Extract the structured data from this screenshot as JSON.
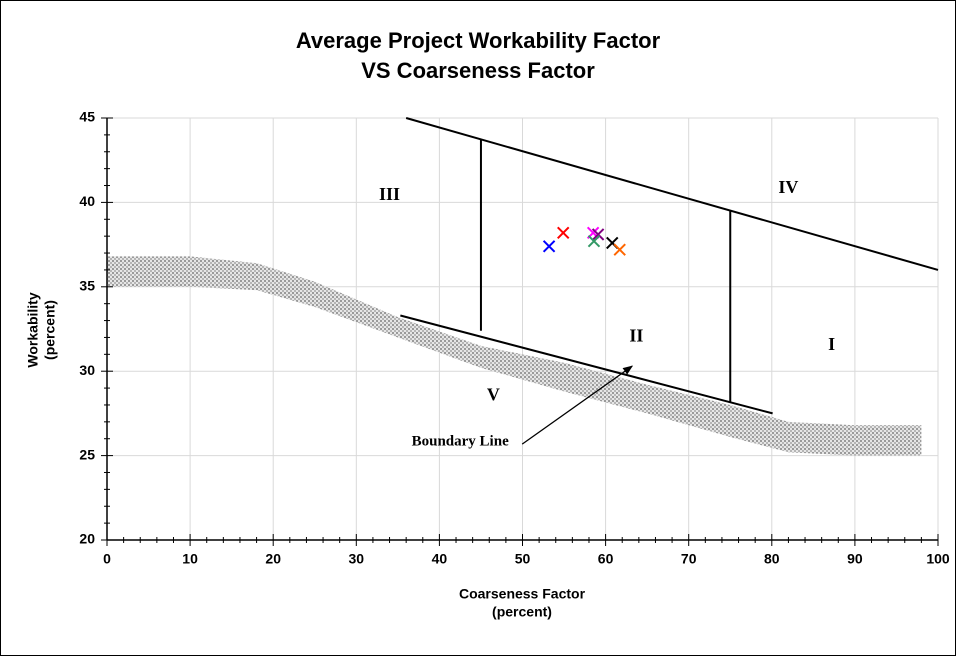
{
  "chart_data": {
    "type": "scatter",
    "title": [
      "Average Project Workability Factor",
      "VS Coarseness Factor"
    ],
    "x_label": [
      "Coarseness Factor",
      "(percent)"
    ],
    "y_label": [
      "Workability",
      "(percent)"
    ],
    "xlim": [
      0,
      100
    ],
    "ylim": [
      20,
      45
    ],
    "xticks": [
      0,
      10,
      20,
      30,
      40,
      50,
      60,
      70,
      80,
      90,
      100
    ],
    "yticks": [
      20,
      25,
      30,
      35,
      40,
      45
    ],
    "grid": true,
    "series": [
      {
        "color": "#0000ff",
        "x": [
          53.2
        ],
        "values": [
          37.4
        ]
      },
      {
        "color": "#ff0000",
        "x": [
          54.9
        ],
        "values": [
          38.2
        ]
      },
      {
        "color": "#ff00ff",
        "x": [
          58.5
        ],
        "values": [
          38.2
        ]
      },
      {
        "color": "#800080",
        "x": [
          59.1
        ],
        "values": [
          38.1
        ]
      },
      {
        "color": "#339966",
        "x": [
          58.6
        ],
        "values": [
          37.7
        ]
      },
      {
        "color": "#000000",
        "x": [
          60.8
        ],
        "values": [
          37.6
        ]
      },
      {
        "color": "#ff6600",
        "x": [
          61.7
        ],
        "values": [
          37.2
        ]
      }
    ],
    "boundary_lines": [
      {
        "x": [
          36,
          100
        ],
        "values": [
          45,
          36
        ]
      },
      {
        "x": [
          35.3,
          80.1
        ],
        "values": [
          33.3,
          27.5
        ]
      },
      {
        "x": [
          45,
          45
        ],
        "values": [
          32.4,
          43.7
        ]
      },
      {
        "x": [
          75,
          75
        ],
        "values": [
          28.2,
          39.5
        ]
      }
    ],
    "band": {
      "x": [
        0,
        10,
        18,
        25,
        35,
        45,
        55,
        65,
        75,
        82,
        90,
        98
      ],
      "upper": [
        36.8,
        36.8,
        36.4,
        35.3,
        33.2,
        31.5,
        30.5,
        29.2,
        28,
        27,
        26.8,
        26.8
      ],
      "lower": [
        35,
        35,
        34.8,
        33.8,
        32,
        30.2,
        28.8,
        27.5,
        26.1,
        25.2,
        25,
        25
      ]
    },
    "annotations": [
      "III",
      "IV",
      "II",
      "I",
      "V",
      "Boundary Line"
    ]
  }
}
